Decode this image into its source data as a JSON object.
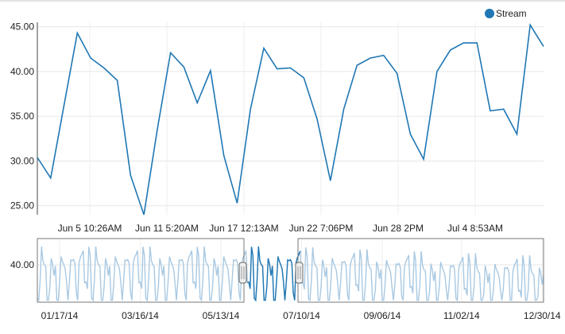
{
  "chart_data": {
    "type": "line",
    "legend": {
      "label": "Stream",
      "placement": "top-right",
      "color": "#1f77b4"
    },
    "main": {
      "x_start": "2014-06-01T12:00",
      "x_step_hours": 24,
      "ylim": [
        24,
        45.5
      ],
      "yticks": [
        "45.00",
        "40.00",
        "35.00",
        "30.00",
        "25.00"
      ],
      "ytick_values": [
        45,
        40,
        35,
        30,
        25
      ],
      "xticks": [
        {
          "label": "Jun 5 10:26AM",
          "date": "2014-06-05T10:26"
        },
        {
          "label": "Jun 11 5:20AM",
          "date": "2014-06-11T05:20"
        },
        {
          "label": "Jun 17 12:13AM",
          "date": "2014-06-17T00:13"
        },
        {
          "label": "Jun 22 7:06PM",
          "date": "2014-06-22T19:06"
        },
        {
          "label": "Jun 28 2PM",
          "date": "2014-06-28T14:00"
        },
        {
          "label": "Jul 4 8:53AM",
          "date": "2014-07-04T08:53"
        }
      ],
      "series": [
        {
          "name": "Stream",
          "color": "#1f77b4",
          "values": [
            30.4,
            28.1,
            36.2,
            44.3,
            41.5,
            40.4,
            39.0,
            28.4,
            24.0,
            33.5,
            42.1,
            40.5,
            36.5,
            40.1,
            30.6,
            25.3,
            35.8,
            42.6,
            40.3,
            40.4,
            39.3,
            34.7,
            27.8,
            35.8,
            40.7,
            41.5,
            41.8,
            39.8,
            33.0,
            30.2,
            40.0,
            42.4,
            43.2,
            43.2,
            35.6,
            35.8,
            33.0,
            45.2,
            42.8
          ]
        }
      ]
    },
    "overview": {
      "yticks": [
        "40.00"
      ],
      "ytick_values": [
        40
      ],
      "xticks": [
        "01/17/14",
        "03/16/14",
        "05/13/14",
        "07/10/14",
        "09/06/14",
        "11/02/14",
        "12/30/14"
      ],
      "selection": {
        "start": "2014-06-01",
        "end": "2014-07-09"
      },
      "series_color": "#1f77b4",
      "dim_color": "#a9c9e2"
    }
  }
}
